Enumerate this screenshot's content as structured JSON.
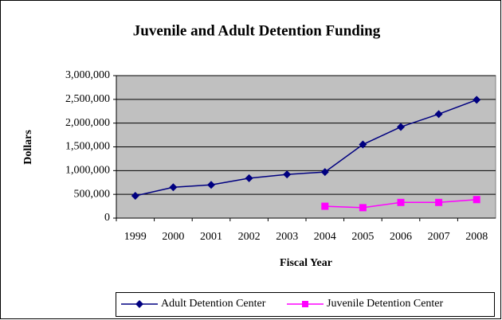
{
  "chart_data": {
    "type": "line",
    "title": "Juvenile and Adult Detention Funding",
    "x_label": "Fiscal Year",
    "y_label": "Dollars",
    "categories": [
      "1999",
      "2000",
      "2001",
      "2002",
      "2003",
      "2004",
      "2005",
      "2006",
      "2007",
      "2008"
    ],
    "series": [
      {
        "name": "Adult Detention Center",
        "color": "#000080",
        "marker": "diamond",
        "values": [
          470000,
          650000,
          700000,
          840000,
          920000,
          970000,
          1550000,
          1920000,
          2190000,
          2490000
        ]
      },
      {
        "name": "Juvenile Detention Center",
        "color": "#ff00ff",
        "marker": "square",
        "values": [
          null,
          null,
          null,
          null,
          null,
          250000,
          220000,
          330000,
          330000,
          390000
        ]
      }
    ],
    "ylim": [
      0,
      3000000
    ],
    "yticks": [
      0,
      {
        "value": 500000,
        "label": "500,000"
      },
      {
        "value": 1000000,
        "label": "1,000,000"
      },
      {
        "value": 1500000,
        "label": "1,500,000"
      },
      {
        "value": 2000000,
        "label": "2,000,000"
      },
      {
        "value": 2500000,
        "label": "2,500,000"
      },
      {
        "value": 3000000,
        "label": "3,000,000"
      }
    ],
    "grid": true,
    "legend": "bottom"
  }
}
